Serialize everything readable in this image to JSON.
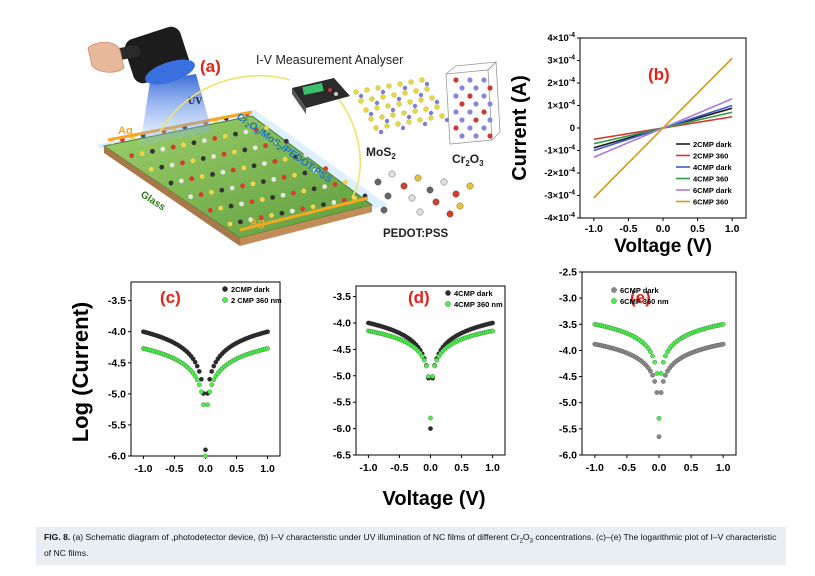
{
  "schematic": {
    "label": "(a)",
    "analyser_label": "I-V Measurement Analyser",
    "uv_label": "UV",
    "ag_label": "Ag",
    "glass_label": "Glass",
    "film_label": "Cr2O3/MoS2/PEDOT:PSS",
    "mos2_label": "MoS2",
    "cr2o3_label": "Cr2O3",
    "pedot_label": "PEDOT:PSS",
    "colors": {
      "label_red": "#e8201a",
      "ag_orange": "#f5a623",
      "uv_blue": "#3d6fd8",
      "film_blue": "#1b74c9"
    }
  },
  "shared_labels": {
    "log_current_ylabel": "Log (Current)",
    "voltage_xlabel": "Voltage (V)"
  },
  "chart_data": [
    {
      "id": "b",
      "type": "line",
      "panel_label": "(b)",
      "xlabel": "Voltage (V)",
      "ylabel": "Current (A)",
      "xlim": [
        -1.2,
        1.2
      ],
      "ylim": [
        -0.0004,
        0.0004
      ],
      "xticks": [
        "-1.0",
        "-0.5",
        "0.0",
        "0.5",
        "1.0"
      ],
      "xtick_values": [
        -1.0,
        -0.5,
        0.0,
        0.5,
        1.0
      ],
      "ytick_values": [
        0.0004,
        0.0003,
        0.0002,
        0.0001,
        0,
        -0.0001,
        -0.0002,
        -0.0003,
        -0.0004
      ],
      "yticks": [
        {
          "mant": "4×10",
          "exp": "-4"
        },
        {
          "mant": "3×10",
          "exp": "-4"
        },
        {
          "mant": "2×10",
          "exp": "-4"
        },
        {
          "mant": "1×10",
          "exp": "-4"
        },
        {
          "mant": "0",
          "exp": ""
        },
        {
          "mant": "-1×10",
          "exp": "-4"
        },
        {
          "mant": "-2×10",
          "exp": "-4"
        },
        {
          "mant": "-3×10",
          "exp": "-4"
        },
        {
          "mant": "-4×10",
          "exp": "-4"
        }
      ],
      "legend_position": "lower-right",
      "series": [
        {
          "name": "2CMP dark",
          "color": "#1f1f1f",
          "x": [
            -1.0,
            1.0
          ],
          "y": [
            -8.8e-05,
            8.8e-05
          ]
        },
        {
          "name": "2CMP 360",
          "color": "#e0302a",
          "x": [
            -1.0,
            1.0
          ],
          "y": [
            -5e-05,
            5e-05
          ]
        },
        {
          "name": "4CMP dark",
          "color": "#3a5fcd",
          "x": [
            -1.0,
            1.0
          ],
          "y": [
            -0.0001,
            0.0001
          ]
        },
        {
          "name": "4CMP 360",
          "color": "#2e9a48",
          "x": [
            -1.0,
            1.0
          ],
          "y": [
            -7e-05,
            7e-05
          ]
        },
        {
          "name": "6CMP dark",
          "color": "#b07ad8",
          "x": [
            -1.0,
            1.0
          ],
          "y": [
            -0.00013,
            0.00013
          ]
        },
        {
          "name": "6CMP 360",
          "color": "#d49a1a",
          "x": [
            -1.0,
            1.0
          ],
          "y": [
            -0.00031,
            0.00031
          ]
        }
      ]
    },
    {
      "id": "c",
      "type": "scatter",
      "panel_label": "(c)",
      "xlabel": "",
      "ylabel": "",
      "xlim": [
        -1.2,
        1.2
      ],
      "ylim": [
        -6.0,
        -3.2
      ],
      "xticks": [
        "-1.0",
        "-0.5",
        "0.0",
        "0.5",
        "1.0"
      ],
      "xtick_values": [
        -1.0,
        -0.5,
        0.0,
        0.5,
        1.0
      ],
      "yticks": [
        "-3.5",
        "-4.0",
        "-4.5",
        "-5.0",
        "-5.5",
        "-6.0"
      ],
      "ytick_values": [
        -3.5,
        -4.0,
        -4.5,
        -5.0,
        -5.5,
        -6.0
      ],
      "legend_position": "top-right",
      "series": [
        {
          "name": "2CMP dark",
          "color": "#2b2b2b",
          "baseline": -4.0,
          "min": -5.9,
          "min_x": 0.0
        },
        {
          "name": "2 CMP 360 nm",
          "color": "#4cf04c",
          "baseline": -4.27,
          "min": -6.0,
          "min_x": 0.0
        }
      ]
    },
    {
      "id": "d",
      "type": "scatter",
      "panel_label": "(d)",
      "xlabel": "",
      "ylabel": "",
      "xlim": [
        -1.2,
        1.2
      ],
      "ylim": [
        -6.5,
        -3.3
      ],
      "xticks": [
        "-1.0",
        "-0.5",
        "0.0",
        "0.5",
        "1.0"
      ],
      "xtick_values": [
        -1.0,
        -0.5,
        0.0,
        0.5,
        1.0
      ],
      "yticks": [
        "-3.5",
        "-4.0",
        "-4.5",
        "-5.0",
        "-5.5",
        "-6.0",
        "-6.5"
      ],
      "ytick_values": [
        -3.5,
        -4.0,
        -4.5,
        -5.0,
        -5.5,
        -6.0,
        -6.5
      ],
      "legend_position": "top-right",
      "series": [
        {
          "name": "4CMP dark",
          "color": "#2b2b2b",
          "baseline": -4.0,
          "min": -6.0,
          "min_x": 0.0
        },
        {
          "name": "4CMP 360 nm",
          "color": "#4cf04c",
          "baseline": -4.15,
          "min": -5.8,
          "min_x": 0.0
        }
      ]
    },
    {
      "id": "e",
      "type": "scatter",
      "panel_label": "(e)",
      "xlabel": "",
      "ylabel": "",
      "xlim": [
        -1.2,
        1.2
      ],
      "ylim": [
        -6.0,
        -2.5
      ],
      "xticks": [
        "-1.0",
        "-0.5",
        "0.0",
        "0.5",
        "1.0"
      ],
      "xtick_values": [
        -1.0,
        -0.5,
        0.0,
        0.5,
        1.0
      ],
      "yticks": [
        "-2.5",
        "-3.0",
        "-3.5",
        "-4.0",
        "-4.5",
        "-5.0",
        "-5.5",
        "-6.0"
      ],
      "ytick_values": [
        -2.5,
        -3.0,
        -3.5,
        -4.0,
        -4.5,
        -5.0,
        -5.5,
        -6.0
      ],
      "legend_position": "top-left",
      "series": [
        {
          "name": "6CMP dark",
          "color": "#8a8a8a",
          "baseline": -3.88,
          "min": -5.65,
          "min_x": 0.0
        },
        {
          "name": "6CMP 360 nm",
          "color": "#4cf04c",
          "baseline": -3.5,
          "min": -5.3,
          "min_x": 0.0
        }
      ]
    }
  ],
  "caption": {
    "fig_label": "FIG. 8.",
    "text_1": " (a) Schematic diagram of ,photodetector device, (b) I–V characteristic under UV illumination of NC films of different Cr",
    "sub_1": "2",
    "text_2": "O",
    "sub_2": "3",
    "text_3": " concentrations. (c)–(e) The logarithmic plot of I–V characteristic of NC films."
  }
}
